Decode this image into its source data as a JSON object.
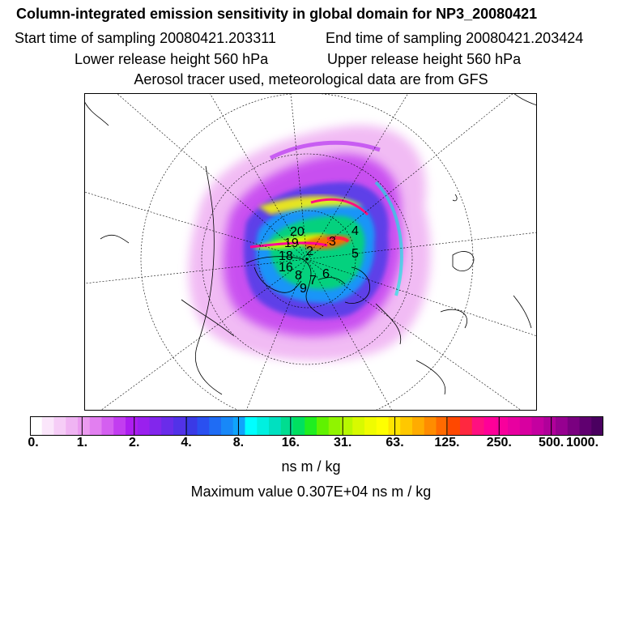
{
  "header": {
    "title": "Column-integrated emission sensitivity in global domain for NP3_20080421",
    "start": "Start time of sampling 20080421.203311",
    "end": "End time of sampling 20080421.203424",
    "lower": "Lower release height  560 hPa",
    "upper": "Upper release height  560 hPa",
    "tracer": "Aerosol tracer used, meteorological data are from GFS"
  },
  "map": {
    "projection": "polar",
    "labels": [
      "20",
      "19",
      "18",
      "16",
      "2",
      "3",
      "4",
      "5",
      "6",
      "7",
      "8",
      "9"
    ]
  },
  "colorbar": {
    "ticks": [
      "0.",
      "1.",
      "2.",
      "4.",
      "8.",
      "16.",
      "31.",
      "63.",
      "125.",
      "250.",
      "500.",
      "1000."
    ],
    "unit": "ns m / kg",
    "colors": [
      "#ffffff",
      "#fbe6fb",
      "#f6cdf7",
      "#f0b4f3",
      "#eb9bf0",
      "#e27ff0",
      "#d45ff0",
      "#c23df0",
      "#ad1ef0",
      "#9a20ee",
      "#8226ec",
      "#6a2cea",
      "#5232e8",
      "#3a3ae6",
      "#2a50f0",
      "#1f6cf4",
      "#1888f8",
      "#10a4fb",
      "#00ffff",
      "#00f0e0",
      "#00e0c0",
      "#00dd90",
      "#00e060",
      "#20ee20",
      "#60f200",
      "#90f400",
      "#b8f800",
      "#d8fa00",
      "#f0fc00",
      "#ffff00",
      "#ffe400",
      "#ffc800",
      "#ffac00",
      "#ff8c00",
      "#ff6a00",
      "#ff4800",
      "#ff2840",
      "#ff1080",
      "#ff0098",
      "#f8009c",
      "#e800a0",
      "#d800a0",
      "#c400a0",
      "#b0009a",
      "#960090",
      "#7a0080",
      "#600070",
      "#4a0060"
    ],
    "max_value": "Maximum value  0.307E+04 ns m / kg"
  }
}
